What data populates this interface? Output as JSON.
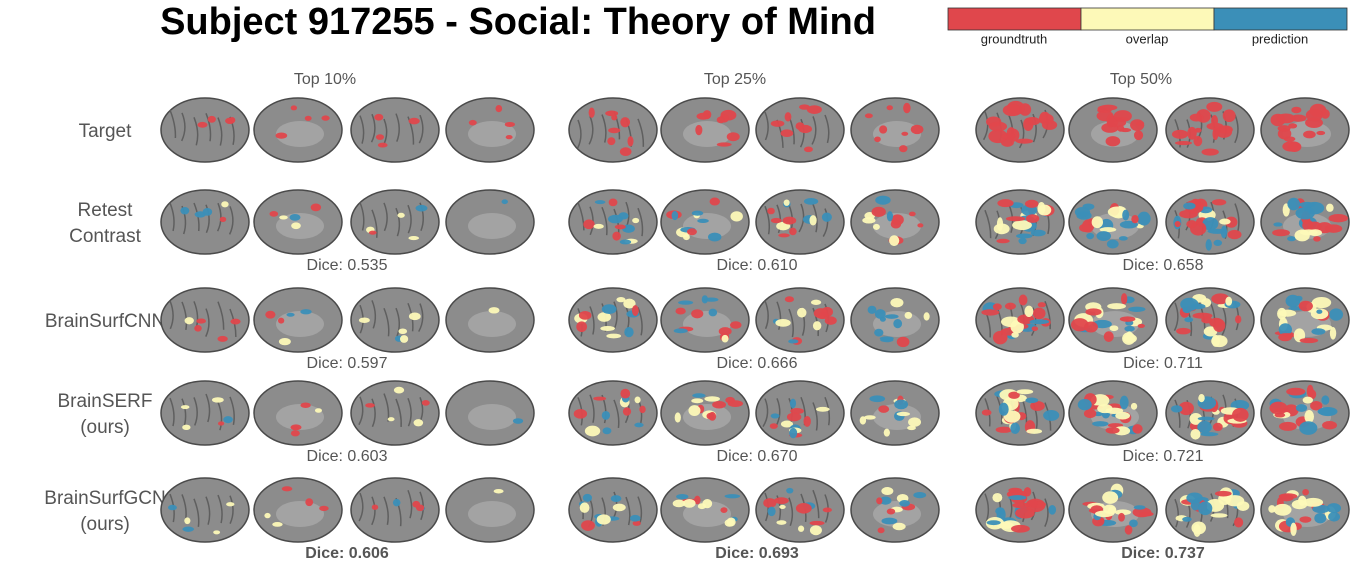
{
  "title": "Subject 917255 - Social: Theory of Mind",
  "legend": [
    {
      "label": "groundtruth",
      "color": "#e0474c"
    },
    {
      "label": "overlap",
      "color": "#fdf9b8"
    },
    {
      "label": "prediction",
      "color": "#3b8fb8"
    }
  ],
  "columns": [
    "Top 10%",
    "Top 25%",
    "Top 50%"
  ],
  "rows": [
    {
      "label": [
        "Target"
      ]
    },
    {
      "label": [
        "Retest",
        "Contrast"
      ],
      "dice": [
        "Dice: 0.535",
        "Dice: 0.610",
        "Dice: 0.658"
      ]
    },
    {
      "label": [
        "BrainSurfCNN"
      ],
      "dice": [
        "Dice: 0.597",
        "Dice: 0.666",
        "Dice: 0.711"
      ]
    },
    {
      "label": [
        "BrainSERF",
        "(ours)"
      ],
      "dice": [
        "Dice: 0.603",
        "Dice: 0.670",
        "Dice: 0.721"
      ]
    },
    {
      "label": [
        "BrainSurfGCN",
        "(ours)"
      ],
      "dice": [
        "Dice: 0.606",
        "Dice: 0.693",
        "Dice: 0.737"
      ]
    }
  ]
}
